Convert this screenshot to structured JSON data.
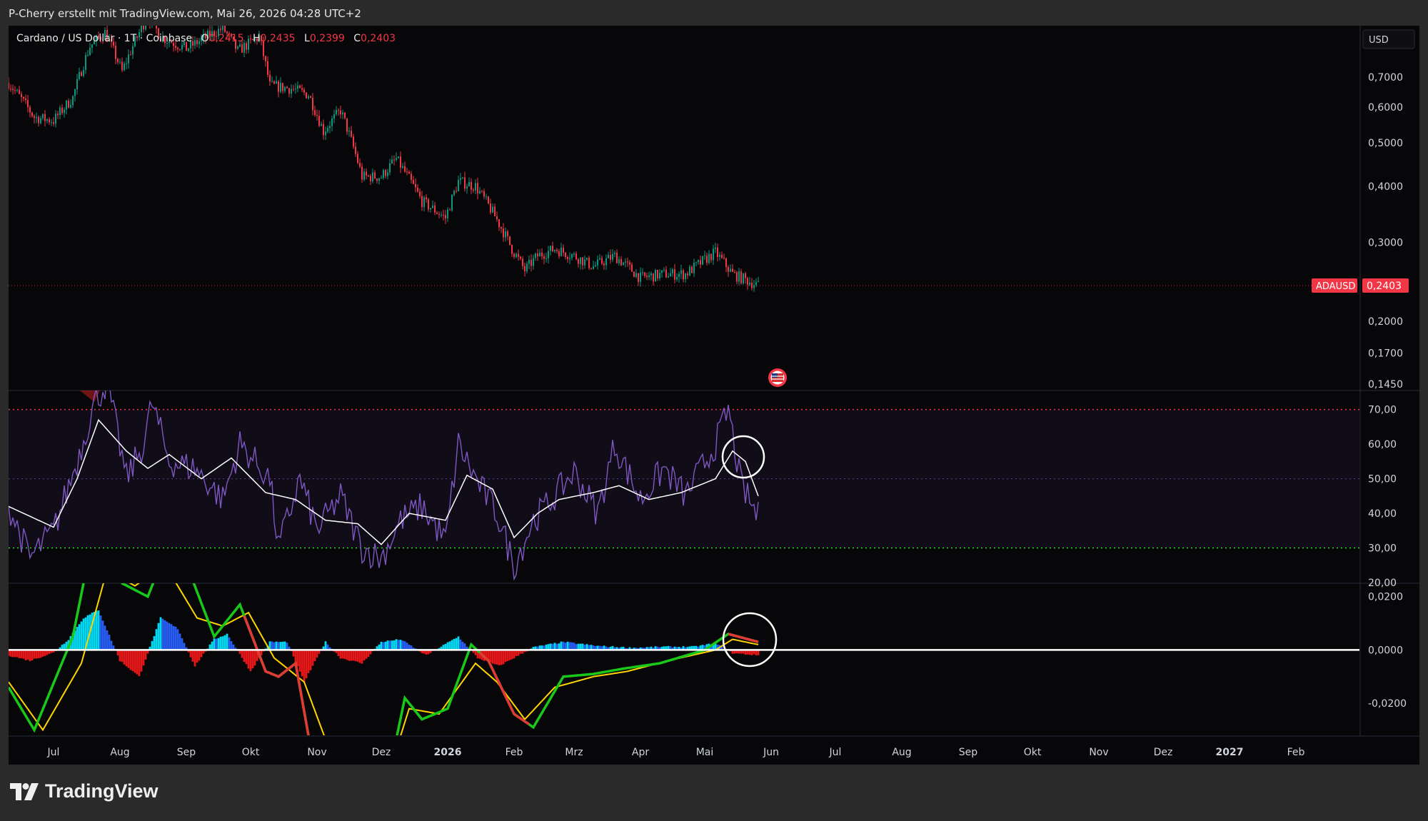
{
  "header": {
    "text": "P-Cherry erstellt mit TradingView.com, Mai 26, 2026 04:28 UTC+2"
  },
  "legend": {
    "symbol": "Cardano / US Dollar · 1T · Coinbase",
    "o_label": "O",
    "o": "0,2415",
    "h_label": "H",
    "h": "0,2435",
    "l_label": "L",
    "l": "0,2399",
    "c_label": "C",
    "c": "0,2403"
  },
  "footer": {
    "brand": "TradingView"
  },
  "colors": {
    "background": "#07070a",
    "up": "#089981",
    "down": "#f23645",
    "rsi": "#7e57c2",
    "rsi_ma": "#ffffff",
    "upper_band": "#f23645",
    "lower_band": "#2bd92b",
    "macd": "#19c919",
    "signal": "#ffd400",
    "hist_pos": "#2962ff",
    "hist_pos_strong": "#00e5ff",
    "hist_neg": "#ff1a1a"
  },
  "chart_data": [
    {
      "type": "candlestick",
      "symbol": "ADAUSD",
      "currency": "USD",
      "scale": "log",
      "last_price": "0,2403",
      "price_label": "ADAUSD",
      "y_ticks": [
        "0,7000",
        "0,6000",
        "0,5000",
        "0,4000",
        "0,3000",
        "0,2000",
        "0,1700",
        "0,1450"
      ],
      "y_tick_values": [
        0.7,
        0.6,
        0.5,
        0.4,
        0.3,
        0.2,
        0.17,
        0.145
      ],
      "x_ticks": [
        "Jul",
        "Aug",
        "Sep",
        "Okt",
        "Nov",
        "Dez",
        "2026",
        "Feb",
        "Mrz",
        "Apr",
        "Mai",
        "Jun",
        "Jul",
        "Aug",
        "Sep",
        "Okt",
        "Nov",
        "Dez",
        "2027",
        "Feb"
      ],
      "x_tick_dates": [
        "2025-07-01",
        "2025-08-01",
        "2025-09-01",
        "2025-10-01",
        "2025-11-01",
        "2025-12-01",
        "2026-01-01",
        "2026-02-01",
        "2026-03-01",
        "2026-04-01",
        "2026-05-01",
        "2026-06-01",
        "2026-07-01",
        "2026-08-01",
        "2026-09-01",
        "2026-10-01",
        "2026-11-01",
        "2026-12-01",
        "2027-01-01",
        "2027-02-01"
      ],
      "price_path": [
        [
          "2025-06-10",
          0.68
        ],
        [
          "2025-06-22",
          0.57
        ],
        [
          "2025-07-01",
          0.56
        ],
        [
          "2025-07-10",
          0.63
        ],
        [
          "2025-07-18",
          0.82
        ],
        [
          "2025-07-25",
          0.88
        ],
        [
          "2025-08-02",
          0.72
        ],
        [
          "2025-08-14",
          0.96
        ],
        [
          "2025-08-20",
          0.86
        ],
        [
          "2025-09-01",
          0.81
        ],
        [
          "2025-09-18",
          0.9
        ],
        [
          "2025-09-25",
          0.8
        ],
        [
          "2025-10-05",
          0.86
        ],
        [
          "2025-10-10",
          0.67
        ],
        [
          "2025-10-20",
          0.66
        ],
        [
          "2025-10-28",
          0.64
        ],
        [
          "2025-11-04",
          0.53
        ],
        [
          "2025-11-12",
          0.59
        ],
        [
          "2025-11-22",
          0.42
        ],
        [
          "2025-12-01",
          0.42
        ],
        [
          "2025-12-08",
          0.46
        ],
        [
          "2025-12-20",
          0.37
        ],
        [
          "2025-12-31",
          0.34
        ],
        [
          "2026-01-06",
          0.41
        ],
        [
          "2026-01-14",
          0.4
        ],
        [
          "2026-01-22",
          0.35
        ],
        [
          "2026-01-31",
          0.29
        ],
        [
          "2026-02-06",
          0.26
        ],
        [
          "2026-02-12",
          0.28
        ],
        [
          "2026-02-20",
          0.29
        ],
        [
          "2026-03-01",
          0.28
        ],
        [
          "2026-03-10",
          0.265
        ],
        [
          "2026-03-20",
          0.28
        ],
        [
          "2026-04-01",
          0.25
        ],
        [
          "2026-04-12",
          0.255
        ],
        [
          "2026-04-22",
          0.255
        ],
        [
          "2026-05-06",
          0.285
        ],
        [
          "2026-05-14",
          0.255
        ],
        [
          "2026-05-26",
          0.2403
        ]
      ]
    },
    {
      "type": "line",
      "name": "RSI",
      "y_ticks": [
        "70,00",
        "60,00",
        "50,00",
        "40,00",
        "30,00",
        "20,00"
      ],
      "y_tick_values": [
        70,
        60,
        50,
        40,
        30,
        20
      ],
      "bands": [
        70,
        50,
        30
      ],
      "ylim": [
        20,
        75.5
      ],
      "rsi_path": [
        [
          "2025-06-10",
          42
        ],
        [
          "2025-06-20",
          27
        ],
        [
          "2025-07-01",
          35
        ],
        [
          "2025-07-12",
          55
        ],
        [
          "2025-07-20",
          72
        ],
        [
          "2025-07-26",
          78
        ],
        [
          "2025-08-04",
          50
        ],
        [
          "2025-08-12",
          60
        ],
        [
          "2025-08-16",
          72
        ],
        [
          "2025-08-24",
          55
        ],
        [
          "2025-09-05",
          53
        ],
        [
          "2025-09-18",
          44
        ],
        [
          "2025-09-26",
          60
        ],
        [
          "2025-10-10",
          50
        ],
        [
          "2025-10-14",
          30
        ],
        [
          "2025-10-24",
          50
        ],
        [
          "2025-11-01",
          35
        ],
        [
          "2025-11-12",
          45
        ],
        [
          "2025-11-22",
          30
        ],
        [
          "2025-12-01",
          27
        ],
        [
          "2025-12-10",
          38
        ],
        [
          "2025-12-20",
          42
        ],
        [
          "2025-12-31",
          32
        ],
        [
          "2026-01-06",
          60
        ],
        [
          "2026-01-14",
          50
        ],
        [
          "2026-01-24",
          40
        ],
        [
          "2026-02-01",
          25
        ],
        [
          "2026-02-10",
          38
        ],
        [
          "2026-02-20",
          45
        ],
        [
          "2026-03-01",
          52
        ],
        [
          "2026-03-12",
          40
        ],
        [
          "2026-03-20",
          60
        ],
        [
          "2026-04-01",
          44
        ],
        [
          "2026-04-12",
          53
        ],
        [
          "2026-04-22",
          45
        ],
        [
          "2026-05-06",
          60
        ],
        [
          "2026-05-12",
          70
        ],
        [
          "2026-05-18",
          48
        ],
        [
          "2026-05-26",
          39
        ]
      ],
      "rsi_ma_path": [
        [
          "2025-06-10",
          42
        ],
        [
          "2025-07-01",
          36
        ],
        [
          "2025-07-12",
          50
        ],
        [
          "2025-07-22",
          67
        ],
        [
          "2025-08-04",
          58
        ],
        [
          "2025-08-14",
          53
        ],
        [
          "2025-08-24",
          57
        ],
        [
          "2025-09-08",
          50
        ],
        [
          "2025-09-22",
          56
        ],
        [
          "2025-10-08",
          46
        ],
        [
          "2025-10-22",
          44
        ],
        [
          "2025-11-05",
          38
        ],
        [
          "2025-11-20",
          37
        ],
        [
          "2025-12-01",
          31
        ],
        [
          "2025-12-14",
          40
        ],
        [
          "2025-12-31",
          38
        ],
        [
          "2026-01-10",
          51
        ],
        [
          "2026-01-22",
          47
        ],
        [
          "2026-02-01",
          33
        ],
        [
          "2026-02-12",
          40
        ],
        [
          "2026-02-22",
          44
        ],
        [
          "2026-03-10",
          46
        ],
        [
          "2026-03-22",
          48
        ],
        [
          "2026-04-05",
          44
        ],
        [
          "2026-04-20",
          46
        ],
        [
          "2026-05-06",
          50
        ],
        [
          "2026-05-14",
          58
        ],
        [
          "2026-05-20",
          55
        ],
        [
          "2026-05-26",
          45
        ]
      ]
    },
    {
      "type": "line",
      "name": "MACD",
      "y_ticks": [
        "0,0200",
        "0,0000",
        "-0,0200"
      ],
      "y_tick_values": [
        0.02,
        0,
        -0.02
      ],
      "ylim": [
        -0.032,
        0.025
      ],
      "macd_path": [
        [
          "2025-06-10",
          -0.014
        ],
        [
          "2025-06-22",
          -0.03
        ],
        [
          "2025-07-10",
          0.005
        ],
        [
          "2025-07-20",
          0.045
        ],
        [
          "2025-08-02",
          0.025
        ],
        [
          "2025-08-14",
          0.02
        ],
        [
          "2025-08-24",
          0.04
        ],
        [
          "2025-09-04",
          0.026
        ],
        [
          "2025-09-14",
          0.005
        ],
        [
          "2025-09-26",
          0.017
        ],
        [
          "2025-10-08",
          -0.008
        ],
        [
          "2025-10-14",
          -0.01
        ],
        [
          "2025-10-22",
          -0.005
        ],
        [
          "2025-10-28",
          -0.032
        ],
        [
          "2025-11-10",
          -0.05
        ],
        [
          "2025-12-05",
          -0.045
        ],
        [
          "2025-12-12",
          -0.018
        ],
        [
          "2025-12-20",
          -0.026
        ],
        [
          "2026-01-01",
          -0.022
        ],
        [
          "2026-01-12",
          0.002
        ],
        [
          "2026-01-20",
          -0.004
        ],
        [
          "2026-02-01",
          -0.024
        ],
        [
          "2026-02-10",
          -0.029
        ],
        [
          "2026-02-24",
          -0.01
        ],
        [
          "2026-03-10",
          -0.009
        ],
        [
          "2026-03-24",
          -0.007
        ],
        [
          "2026-04-10",
          -0.005
        ],
        [
          "2026-05-01",
          0.0
        ],
        [
          "2026-05-12",
          0.006
        ],
        [
          "2026-05-26",
          0.003
        ]
      ],
      "signal_path": [
        [
          "2025-06-10",
          -0.012
        ],
        [
          "2025-06-26",
          -0.03
        ],
        [
          "2025-07-14",
          -0.005
        ],
        [
          "2025-07-26",
          0.03
        ],
        [
          "2025-08-08",
          0.024
        ],
        [
          "2025-08-22",
          0.032
        ],
        [
          "2025-09-06",
          0.012
        ],
        [
          "2025-09-18",
          0.009
        ],
        [
          "2025-09-30",
          0.014
        ],
        [
          "2025-10-12",
          -0.003
        ],
        [
          "2025-10-26",
          -0.012
        ],
        [
          "2025-11-08",
          -0.04
        ],
        [
          "2025-12-05",
          -0.045
        ],
        [
          "2025-12-14",
          -0.022
        ],
        [
          "2025-12-28",
          -0.024
        ],
        [
          "2026-01-14",
          -0.005
        ],
        [
          "2026-01-24",
          -0.012
        ],
        [
          "2026-02-06",
          -0.026
        ],
        [
          "2026-02-20",
          -0.014
        ],
        [
          "2026-03-10",
          -0.01
        ],
        [
          "2026-03-26",
          -0.008
        ],
        [
          "2026-04-14",
          -0.004
        ],
        [
          "2026-05-06",
          0.0
        ],
        [
          "2026-05-14",
          0.004
        ],
        [
          "2026-05-26",
          0.002
        ]
      ],
      "histogram": [
        [
          "2025-06-10",
          -0.002
        ],
        [
          "2025-06-20",
          -0.004
        ],
        [
          "2025-07-01",
          -0.001
        ],
        [
          "2025-07-08",
          0.004
        ],
        [
          "2025-07-15",
          0.012
        ],
        [
          "2025-07-22",
          0.015
        ],
        [
          "2025-08-01",
          -0.004
        ],
        [
          "2025-08-10",
          -0.01
        ],
        [
          "2025-08-20",
          0.012
        ],
        [
          "2025-08-28",
          0.008
        ],
        [
          "2025-09-05",
          -0.006
        ],
        [
          "2025-09-14",
          0.004
        ],
        [
          "2025-09-20",
          0.006
        ],
        [
          "2025-10-01",
          -0.008
        ],
        [
          "2025-10-10",
          0.003
        ],
        [
          "2025-10-18",
          0.003
        ],
        [
          "2025-10-26",
          -0.012
        ],
        [
          "2025-11-05",
          0.003
        ],
        [
          "2025-11-12",
          -0.003
        ],
        [
          "2025-11-22",
          -0.005
        ],
        [
          "2025-12-01",
          0.003
        ],
        [
          "2025-12-10",
          0.004
        ],
        [
          "2025-12-22",
          -0.002
        ],
        [
          "2026-01-06",
          0.005
        ],
        [
          "2026-01-15",
          -0.003
        ],
        [
          "2026-01-25",
          -0.006
        ],
        [
          "2026-02-10",
          0.001
        ],
        [
          "2026-02-24",
          0.003
        ],
        [
          "2026-03-12",
          0.0015
        ],
        [
          "2026-03-28",
          0.0008
        ],
        [
          "2026-04-12",
          0.0012
        ],
        [
          "2026-04-26",
          0.0012
        ],
        [
          "2026-05-06",
          0.0025
        ],
        [
          "2026-05-14",
          -0.0012
        ],
        [
          "2026-05-26",
          -0.002
        ]
      ]
    }
  ]
}
